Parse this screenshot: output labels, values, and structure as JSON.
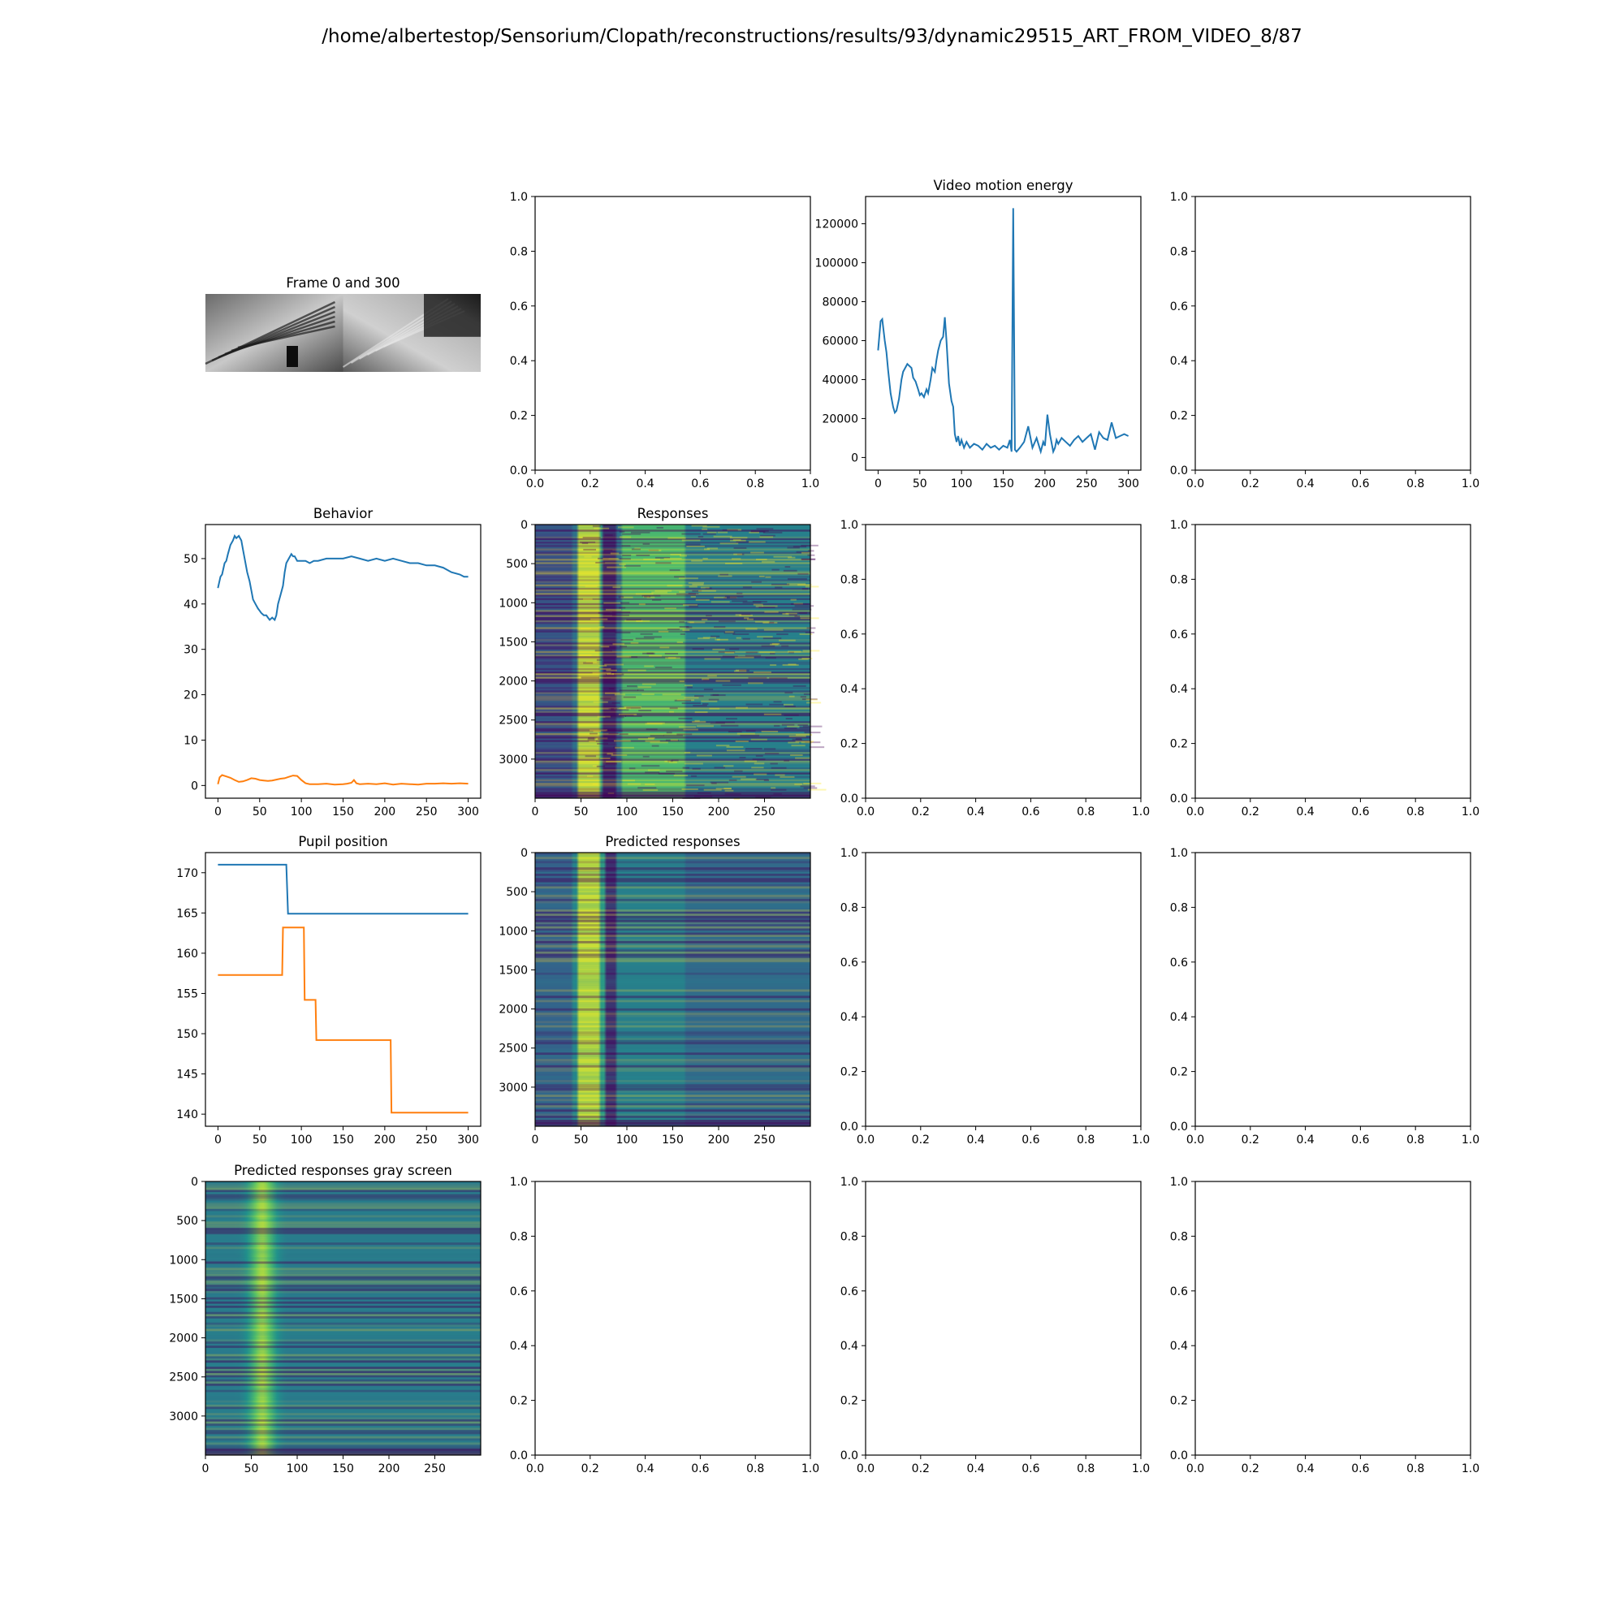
{
  "figure": {
    "suptitle": "/home/albertestop/Sensorium/Clopath/reconstructions/results/93/dynamic29515_ART_FROM_VIDEO_8/87"
  },
  "colors": {
    "series1": "#1f77b4",
    "series2": "#ff7f0e",
    "viridis_low": "#440154",
    "viridis_mid": "#21918c",
    "viridis_high": "#fde725"
  },
  "chart_data": [
    {
      "id": "frames",
      "type": "image",
      "title": "Frame 0 and 300"
    },
    {
      "id": "r0c1",
      "type": "empty",
      "title": "",
      "xlim": [
        0,
        1
      ],
      "ylim": [
        0,
        1
      ],
      "xticks": [
        "0.0",
        "0.2",
        "0.4",
        "0.6",
        "0.8",
        "1.0"
      ],
      "yticks": [
        "0.0",
        "0.2",
        "0.4",
        "0.6",
        "0.8",
        "1.0"
      ]
    },
    {
      "id": "motion",
      "type": "line",
      "title": "Video motion energy",
      "xlim": [
        -15,
        315
      ],
      "ylim": [
        -6500,
        134000
      ],
      "xticks": [
        "0",
        "50",
        "100",
        "150",
        "200",
        "250",
        "300"
      ],
      "yticks": [
        "0",
        "20000",
        "40000",
        "60000",
        "80000",
        "100000",
        "120000"
      ],
      "series": [
        {
          "x": [
            0,
            3,
            5,
            8,
            10,
            12,
            15,
            18,
            20,
            22,
            25,
            28,
            30,
            35,
            40,
            42,
            45,
            48,
            50,
            52,
            55,
            58,
            60,
            63,
            65,
            68,
            70,
            72,
            75,
            78,
            80,
            82,
            85,
            88,
            90,
            92,
            94,
            96,
            98,
            100,
            103,
            106,
            110,
            115,
            120,
            125,
            130,
            135,
            140,
            145,
            150,
            155,
            158,
            160,
            162,
            164,
            166,
            170,
            175,
            180,
            185,
            190,
            195,
            198,
            200,
            203,
            206,
            210,
            212,
            214,
            216,
            220,
            225,
            230,
            235,
            240,
            245,
            250,
            255,
            260,
            265,
            270,
            275,
            280,
            285,
            290,
            295,
            300
          ],
          "y": [
            55000,
            70000,
            71000,
            60000,
            54000,
            45000,
            33000,
            26000,
            23000,
            24000,
            30000,
            40000,
            44000,
            48000,
            46000,
            41000,
            39000,
            35000,
            32000,
            33000,
            31000,
            35000,
            33000,
            40000,
            46000,
            44000,
            50000,
            55000,
            60000,
            62000,
            72000,
            60000,
            38000,
            29000,
            26000,
            12000,
            8000,
            11000,
            6000,
            9000,
            5000,
            8000,
            5000,
            7000,
            6000,
            4000,
            7000,
            5000,
            6000,
            4000,
            6000,
            5000,
            9000,
            3000,
            128000,
            4000,
            3000,
            5000,
            8000,
            16000,
            5000,
            10000,
            3000,
            8000,
            6000,
            22000,
            12000,
            3000,
            5000,
            9000,
            7000,
            10000,
            8000,
            6000,
            9000,
            11000,
            8000,
            10000,
            12000,
            4000,
            13000,
            10000,
            9000,
            18000,
            10000,
            11000,
            12000,
            11000
          ]
        }
      ]
    },
    {
      "id": "r0c3",
      "type": "empty",
      "title": "",
      "xlim": [
        0,
        1
      ],
      "ylim": [
        0,
        1
      ],
      "xticks": [
        "0.0",
        "0.2",
        "0.4",
        "0.6",
        "0.8",
        "1.0"
      ],
      "yticks": [
        "0.0",
        "0.2",
        "0.4",
        "0.6",
        "0.8",
        "1.0"
      ]
    },
    {
      "id": "behavior",
      "type": "line",
      "title": "Behavior",
      "xlim": [
        -15,
        315
      ],
      "ylim": [
        -2.8,
        57.5
      ],
      "xticks": [
        "0",
        "50",
        "100",
        "150",
        "200",
        "250",
        "300"
      ],
      "yticks": [
        "0",
        "10",
        "20",
        "30",
        "40",
        "50"
      ],
      "series": [
        {
          "x": [
            0,
            3,
            5,
            8,
            10,
            12,
            15,
            18,
            20,
            22,
            25,
            28,
            30,
            32,
            35,
            38,
            40,
            42,
            45,
            48,
            50,
            52,
            55,
            58,
            60,
            62,
            65,
            68,
            70,
            72,
            75,
            78,
            80,
            82,
            85,
            88,
            90,
            92,
            95,
            100,
            105,
            110,
            115,
            120,
            130,
            140,
            150,
            160,
            170,
            180,
            190,
            200,
            210,
            220,
            230,
            240,
            250,
            260,
            270,
            280,
            290,
            295,
            300
          ],
          "y": [
            43.5,
            46,
            46.5,
            49,
            49.5,
            51,
            53,
            54,
            55,
            54.5,
            55,
            54,
            52,
            50,
            47,
            45,
            43,
            41,
            40,
            39,
            38.5,
            38,
            37.5,
            37.5,
            37,
            36.5,
            37,
            36.5,
            37.5,
            40,
            42,
            44,
            47,
            49,
            50,
            51,
            50.5,
            50.5,
            49.5,
            49.5,
            49.5,
            49,
            49.5,
            49.5,
            50,
            50,
            50,
            50.5,
            50,
            49.5,
            50,
            49.5,
            50,
            49.5,
            49,
            49,
            48.5,
            48.5,
            48,
            47,
            46.5,
            46,
            46
          ]
        },
        {
          "x": [
            0,
            2,
            5,
            10,
            15,
            20,
            25,
            30,
            35,
            40,
            45,
            50,
            55,
            60,
            65,
            70,
            75,
            80,
            85,
            90,
            95,
            100,
            105,
            110,
            120,
            130,
            140,
            150,
            155,
            160,
            163,
            166,
            170,
            180,
            190,
            200,
            210,
            220,
            230,
            240,
            250,
            260,
            270,
            280,
            290,
            300
          ],
          "y": [
            0.3,
            1.8,
            2.3,
            2.0,
            1.7,
            1.2,
            0.8,
            0.9,
            1.2,
            1.6,
            1.5,
            1.2,
            1.1,
            1.0,
            1.1,
            1.3,
            1.5,
            1.6,
            1.9,
            2.2,
            2.1,
            1.2,
            0.5,
            0.3,
            0.3,
            0.4,
            0.2,
            0.3,
            0.4,
            0.6,
            1.2,
            0.5,
            0.3,
            0.4,
            0.3,
            0.5,
            0.2,
            0.4,
            0.3,
            0.2,
            0.4,
            0.4,
            0.5,
            0.4,
            0.5,
            0.4
          ]
        }
      ]
    },
    {
      "id": "responses",
      "type": "heatmap",
      "title": "Responses",
      "xlim": [
        0,
        300
      ],
      "ylim": [
        3500,
        0
      ],
      "xticks": [
        "0",
        "50",
        "100",
        "150",
        "200",
        "250"
      ],
      "yticks": [
        "0",
        "500",
        "1000",
        "1500",
        "2000",
        "2500",
        "3000"
      ],
      "colormap": "viridis"
    },
    {
      "id": "r1c2",
      "type": "empty",
      "title": "",
      "xlim": [
        0,
        1
      ],
      "ylim": [
        0,
        1
      ],
      "xticks": [
        "0.0",
        "0.2",
        "0.4",
        "0.6",
        "0.8",
        "1.0"
      ],
      "yticks": [
        "0.0",
        "0.2",
        "0.4",
        "0.6",
        "0.8",
        "1.0"
      ]
    },
    {
      "id": "r1c3",
      "type": "empty",
      "title": "",
      "xlim": [
        0,
        1
      ],
      "ylim": [
        0,
        1
      ],
      "xticks": [
        "0.0",
        "0.2",
        "0.4",
        "0.6",
        "0.8",
        "1.0"
      ],
      "yticks": [
        "0.0",
        "0.2",
        "0.4",
        "0.6",
        "0.8",
        "1.0"
      ]
    },
    {
      "id": "pupil",
      "type": "line",
      "title": "Pupil position",
      "xlim": [
        -15,
        315
      ],
      "ylim": [
        138.5,
        172.5
      ],
      "xticks": [
        "0",
        "50",
        "100",
        "150",
        "200",
        "250",
        "300"
      ],
      "yticks": [
        "140",
        "145",
        "150",
        "155",
        "160",
        "165",
        "170"
      ],
      "series": [
        {
          "x": [
            0,
            82,
            84,
            300
          ],
          "y": [
            171,
            171,
            164.9,
            164.9
          ]
        },
        {
          "x": [
            0,
            77,
            78,
            103,
            104,
            117,
            118,
            207,
            208,
            300
          ],
          "y": [
            157.3,
            157.3,
            163.2,
            163.2,
            154.2,
            154.2,
            149.2,
            149.2,
            140.2,
            140.2
          ]
        }
      ]
    },
    {
      "id": "predicted",
      "type": "heatmap",
      "title": "Predicted responses",
      "xlim": [
        0,
        300
      ],
      "ylim": [
        3500,
        0
      ],
      "xticks": [
        "0",
        "50",
        "100",
        "150",
        "200",
        "250"
      ],
      "yticks": [
        "0",
        "500",
        "1000",
        "1500",
        "2000",
        "2500",
        "3000"
      ],
      "colormap": "viridis"
    },
    {
      "id": "r2c2",
      "type": "empty",
      "title": "",
      "xlim": [
        0,
        1
      ],
      "ylim": [
        0,
        1
      ],
      "xticks": [
        "0.0",
        "0.2",
        "0.4",
        "0.6",
        "0.8",
        "1.0"
      ],
      "yticks": [
        "0.0",
        "0.2",
        "0.4",
        "0.6",
        "0.8",
        "1.0"
      ]
    },
    {
      "id": "r2c3",
      "type": "empty",
      "title": "",
      "xlim": [
        0,
        1
      ],
      "ylim": [
        0,
        1
      ],
      "xticks": [
        "0.0",
        "0.2",
        "0.4",
        "0.6",
        "0.8",
        "1.0"
      ],
      "yticks": [
        "0.0",
        "0.2",
        "0.4",
        "0.6",
        "0.8",
        "1.0"
      ]
    },
    {
      "id": "gray",
      "type": "heatmap",
      "title": "Predicted responses gray screen",
      "xlim": [
        0,
        300
      ],
      "ylim": [
        3500,
        0
      ],
      "xticks": [
        "0",
        "50",
        "100",
        "150",
        "200",
        "250"
      ],
      "yticks": [
        "0",
        "500",
        "1000",
        "1500",
        "2000",
        "2500",
        "3000"
      ],
      "colormap": "viridis"
    },
    {
      "id": "r3c1",
      "type": "empty",
      "title": "",
      "xlim": [
        0,
        1
      ],
      "ylim": [
        0,
        1
      ],
      "xticks": [
        "0.0",
        "0.2",
        "0.4",
        "0.6",
        "0.8",
        "1.0"
      ],
      "yticks": [
        "0.0",
        "0.2",
        "0.4",
        "0.6",
        "0.8",
        "1.0"
      ]
    },
    {
      "id": "r3c2",
      "type": "empty",
      "title": "",
      "xlim": [
        0,
        1
      ],
      "ylim": [
        0,
        1
      ],
      "xticks": [
        "0.0",
        "0.2",
        "0.4",
        "0.6",
        "0.8",
        "1.0"
      ],
      "yticks": [
        "0.0",
        "0.2",
        "0.4",
        "0.6",
        "0.8",
        "1.0"
      ]
    },
    {
      "id": "r3c3",
      "type": "empty",
      "title": "",
      "xlim": [
        0,
        1
      ],
      "ylim": [
        0,
        1
      ],
      "xticks": [
        "0.0",
        "0.2",
        "0.4",
        "0.6",
        "0.8",
        "1.0"
      ],
      "yticks": [
        "0.0",
        "0.2",
        "0.4",
        "0.6",
        "0.8",
        "1.0"
      ]
    }
  ]
}
